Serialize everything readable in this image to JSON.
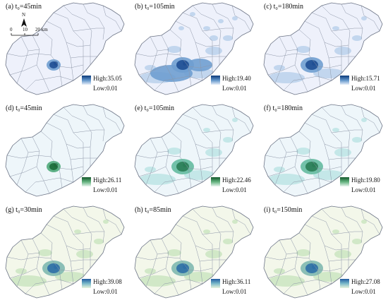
{
  "panels": [
    {
      "title": "(a) t₀=45min",
      "high": "High:35.05",
      "low": "Low:0.01",
      "palette": "blue",
      "spread": 0
    },
    {
      "title": "(b) t₀=105min",
      "high": "High:19.40",
      "low": "Low:0.01",
      "palette": "blue",
      "spread": 2
    },
    {
      "title": "(c) t₀=180min",
      "high": "High:15.71",
      "low": "Low:0.01",
      "palette": "blue",
      "spread": 1
    },
    {
      "title": "(d) t₀=45min",
      "high": "High:26.11",
      "low": "Low:0.01",
      "palette": "green",
      "spread": 0
    },
    {
      "title": "(e) t₀=105min",
      "high": "High:22.46",
      "low": "Low:0.01",
      "palette": "teal",
      "spread": 1
    },
    {
      "title": "(f) t₀=180min",
      "high": "High:19.80",
      "low": "Low:0.01",
      "palette": "teal",
      "spread": 1
    },
    {
      "title": "(g) t₀=30min",
      "high": "High:39.08",
      "low": "Low:0.01",
      "palette": "olive",
      "spread": 1
    },
    {
      "title": "(h) t₀=85min",
      "high": "High:36.11",
      "low": "Low:0.01",
      "palette": "olive",
      "spread": 1
    },
    {
      "title": "(i) t₀=150min",
      "high": "High:27.08",
      "low": "Low:0.01",
      "palette": "olive",
      "spread": 1
    }
  ],
  "scale": {
    "north": "N",
    "ticks": [
      "0",
      "10",
      "20 km"
    ]
  },
  "palettes": {
    "blue": {
      "land": "#eef1fb",
      "light": "#bcd3ec",
      "mid": "#6f9fd0",
      "dark": "#1f4f93",
      "bar": [
        "#0b3a7a",
        "#5e93c9",
        "#e9f0fa"
      ]
    },
    "green": {
      "land": "#eef6fa",
      "light": "#b9e3e3",
      "mid": "#4faa7a",
      "dark": "#1c6b38",
      "bar": [
        "#13572b",
        "#63b27e",
        "#e8f5ee"
      ]
    },
    "teal": {
      "land": "#eef6fa",
      "light": "#bfe6e6",
      "mid": "#64bba0",
      "dark": "#2a7d55",
      "bar": [
        "#13572b",
        "#63b27e",
        "#e8f5ee"
      ]
    },
    "olive": {
      "land": "#f3f7ea",
      "light": "#cde6c3",
      "mid": "#7fb8b0",
      "dark": "#2d6fa6",
      "bar": [
        "#1f5aa0",
        "#78b8c9",
        "#e6f2dc"
      ]
    }
  }
}
